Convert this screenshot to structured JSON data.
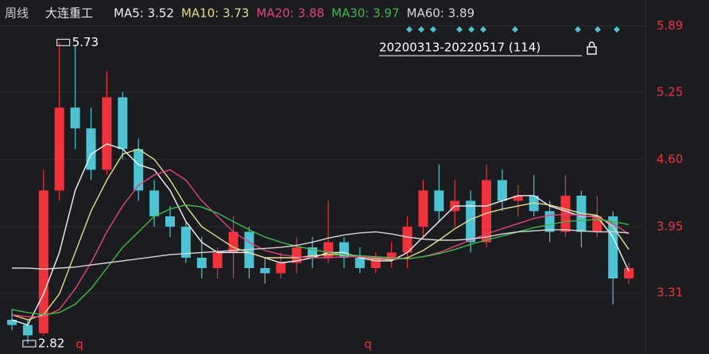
{
  "chart_data": {
    "type": "candlestick",
    "period": "周线",
    "title": "大连重工",
    "range_label": "20200313-20220517 (114)",
    "max_label": 5.73,
    "min_label": 2.82,
    "markers": [
      "q",
      "q"
    ],
    "ylim": [
      2.72,
      6.14
    ],
    "yticks": [
      5.89,
      5.25,
      {
        "value": 4.6,
        "label": "4.60"
      },
      3.95,
      3.31
    ],
    "grid": true,
    "up_color": "#f0323c",
    "down_color": "#4ec3d4",
    "candles": {
      "open": [
        3.05,
        3.0,
        2.92,
        4.3,
        5.1,
        4.9,
        4.5,
        5.2,
        4.7,
        4.3,
        4.05,
        3.95,
        3.65,
        3.55,
        3.7,
        3.9,
        3.55,
        3.5,
        3.6,
        3.75,
        3.65,
        3.8,
        3.65,
        3.55,
        3.65,
        3.7,
        3.95,
        4.3,
        4.1,
        4.2,
        3.8,
        4.4,
        4.2,
        4.25,
        4.1,
        3.9,
        4.25,
        3.9,
        4.05,
        3.45
      ],
      "high": [
        3.15,
        3.05,
        4.5,
        5.73,
        5.7,
        5.1,
        5.45,
        5.25,
        4.8,
        4.4,
        4.15,
        4.0,
        3.85,
        3.75,
        4.05,
        3.95,
        3.65,
        3.7,
        3.85,
        3.85,
        4.2,
        3.85,
        3.75,
        3.7,
        3.8,
        4.05,
        4.4,
        4.55,
        4.4,
        4.3,
        4.55,
        4.5,
        4.35,
        4.45,
        4.2,
        4.45,
        4.3,
        4.25,
        4.1,
        3.6
      ],
      "low": [
        2.95,
        2.82,
        2.9,
        4.2,
        4.7,
        4.4,
        4.45,
        4.6,
        4.2,
        3.95,
        3.85,
        3.6,
        3.45,
        3.45,
        3.45,
        3.45,
        3.4,
        3.45,
        3.5,
        3.55,
        3.6,
        3.55,
        3.5,
        3.5,
        3.55,
        3.55,
        3.85,
        4.0,
        3.95,
        3.7,
        3.75,
        4.1,
        4.05,
        4.05,
        3.8,
        3.85,
        3.75,
        3.85,
        3.2,
        3.4
      ],
      "close": [
        3.0,
        2.9,
        4.3,
        5.1,
        4.9,
        4.5,
        5.2,
        4.7,
        4.3,
        4.05,
        3.95,
        3.65,
        3.55,
        3.7,
        3.9,
        3.55,
        3.5,
        3.6,
        3.75,
        3.65,
        3.8,
        3.65,
        3.55,
        3.65,
        3.7,
        3.95,
        4.3,
        4.1,
        4.2,
        3.8,
        4.4,
        4.2,
        4.25,
        4.1,
        3.9,
        4.25,
        3.9,
        4.05,
        3.45,
        3.55
      ]
    },
    "series": [
      {
        "name": "MA5: 3.52",
        "color": "#f2f2f2",
        "values": [
          3.05,
          3.0,
          3.3,
          3.7,
          4.3,
          4.65,
          4.75,
          4.7,
          4.55,
          4.5,
          4.3,
          4.0,
          3.8,
          3.7,
          3.7,
          3.7,
          3.65,
          3.6,
          3.62,
          3.65,
          3.7,
          3.7,
          3.65,
          3.62,
          3.62,
          3.7,
          3.85,
          4.0,
          4.15,
          4.15,
          4.15,
          4.2,
          4.25,
          4.25,
          4.15,
          4.1,
          4.05,
          4.05,
          3.85,
          3.52
        ]
      },
      {
        "name": "MA10: 3.73",
        "color": "#e3dc8c",
        "values": [
          3.1,
          3.05,
          3.1,
          3.3,
          3.7,
          4.1,
          4.4,
          4.65,
          4.7,
          4.6,
          4.4,
          4.15,
          3.95,
          3.85,
          3.75,
          3.7,
          3.65,
          3.65,
          3.65,
          3.67,
          3.68,
          3.68,
          3.66,
          3.64,
          3.63,
          3.65,
          3.72,
          3.82,
          3.93,
          4.02,
          4.08,
          4.12,
          4.15,
          4.18,
          4.16,
          4.12,
          4.08,
          4.06,
          3.95,
          3.73
        ]
      },
      {
        "name": "MA20: 3.88",
        "color": "#e4447c",
        "values": [
          3.1,
          3.08,
          3.08,
          3.15,
          3.35,
          3.6,
          3.9,
          4.15,
          4.35,
          4.45,
          4.5,
          4.4,
          4.2,
          4.05,
          3.9,
          3.8,
          3.72,
          3.68,
          3.66,
          3.65,
          3.65,
          3.66,
          3.66,
          3.65,
          3.64,
          3.64,
          3.66,
          3.7,
          3.76,
          3.82,
          3.88,
          3.93,
          3.98,
          4.03,
          4.06,
          4.07,
          4.06,
          4.04,
          3.98,
          3.88
        ]
      },
      {
        "name": "MA30: 3.97",
        "color": "#3dbb46",
        "values": [
          3.15,
          3.12,
          3.1,
          3.12,
          3.2,
          3.35,
          3.55,
          3.75,
          3.9,
          4.05,
          4.12,
          4.16,
          4.14,
          4.08,
          4.0,
          3.92,
          3.85,
          3.8,
          3.76,
          3.73,
          3.7,
          3.68,
          3.67,
          3.66,
          3.65,
          3.64,
          3.66,
          3.69,
          3.73,
          3.78,
          3.82,
          3.86,
          3.9,
          3.94,
          3.97,
          4.0,
          4.01,
          4.02,
          4.0,
          3.97
        ]
      },
      {
        "name": "MA60: 3.89",
        "color": "#d8d8d8",
        "values": [
          3.55,
          3.55,
          3.54,
          3.55,
          3.56,
          3.58,
          3.6,
          3.62,
          3.64,
          3.66,
          3.68,
          3.69,
          3.7,
          3.71,
          3.72,
          3.73,
          3.74,
          3.75,
          3.77,
          3.8,
          3.84,
          3.87,
          3.89,
          3.9,
          3.88,
          3.85,
          3.83,
          3.82,
          3.82,
          3.83,
          3.85,
          3.88,
          3.9,
          3.91,
          3.92,
          3.92,
          3.91,
          3.9,
          3.9,
          3.89
        ]
      }
    ]
  }
}
